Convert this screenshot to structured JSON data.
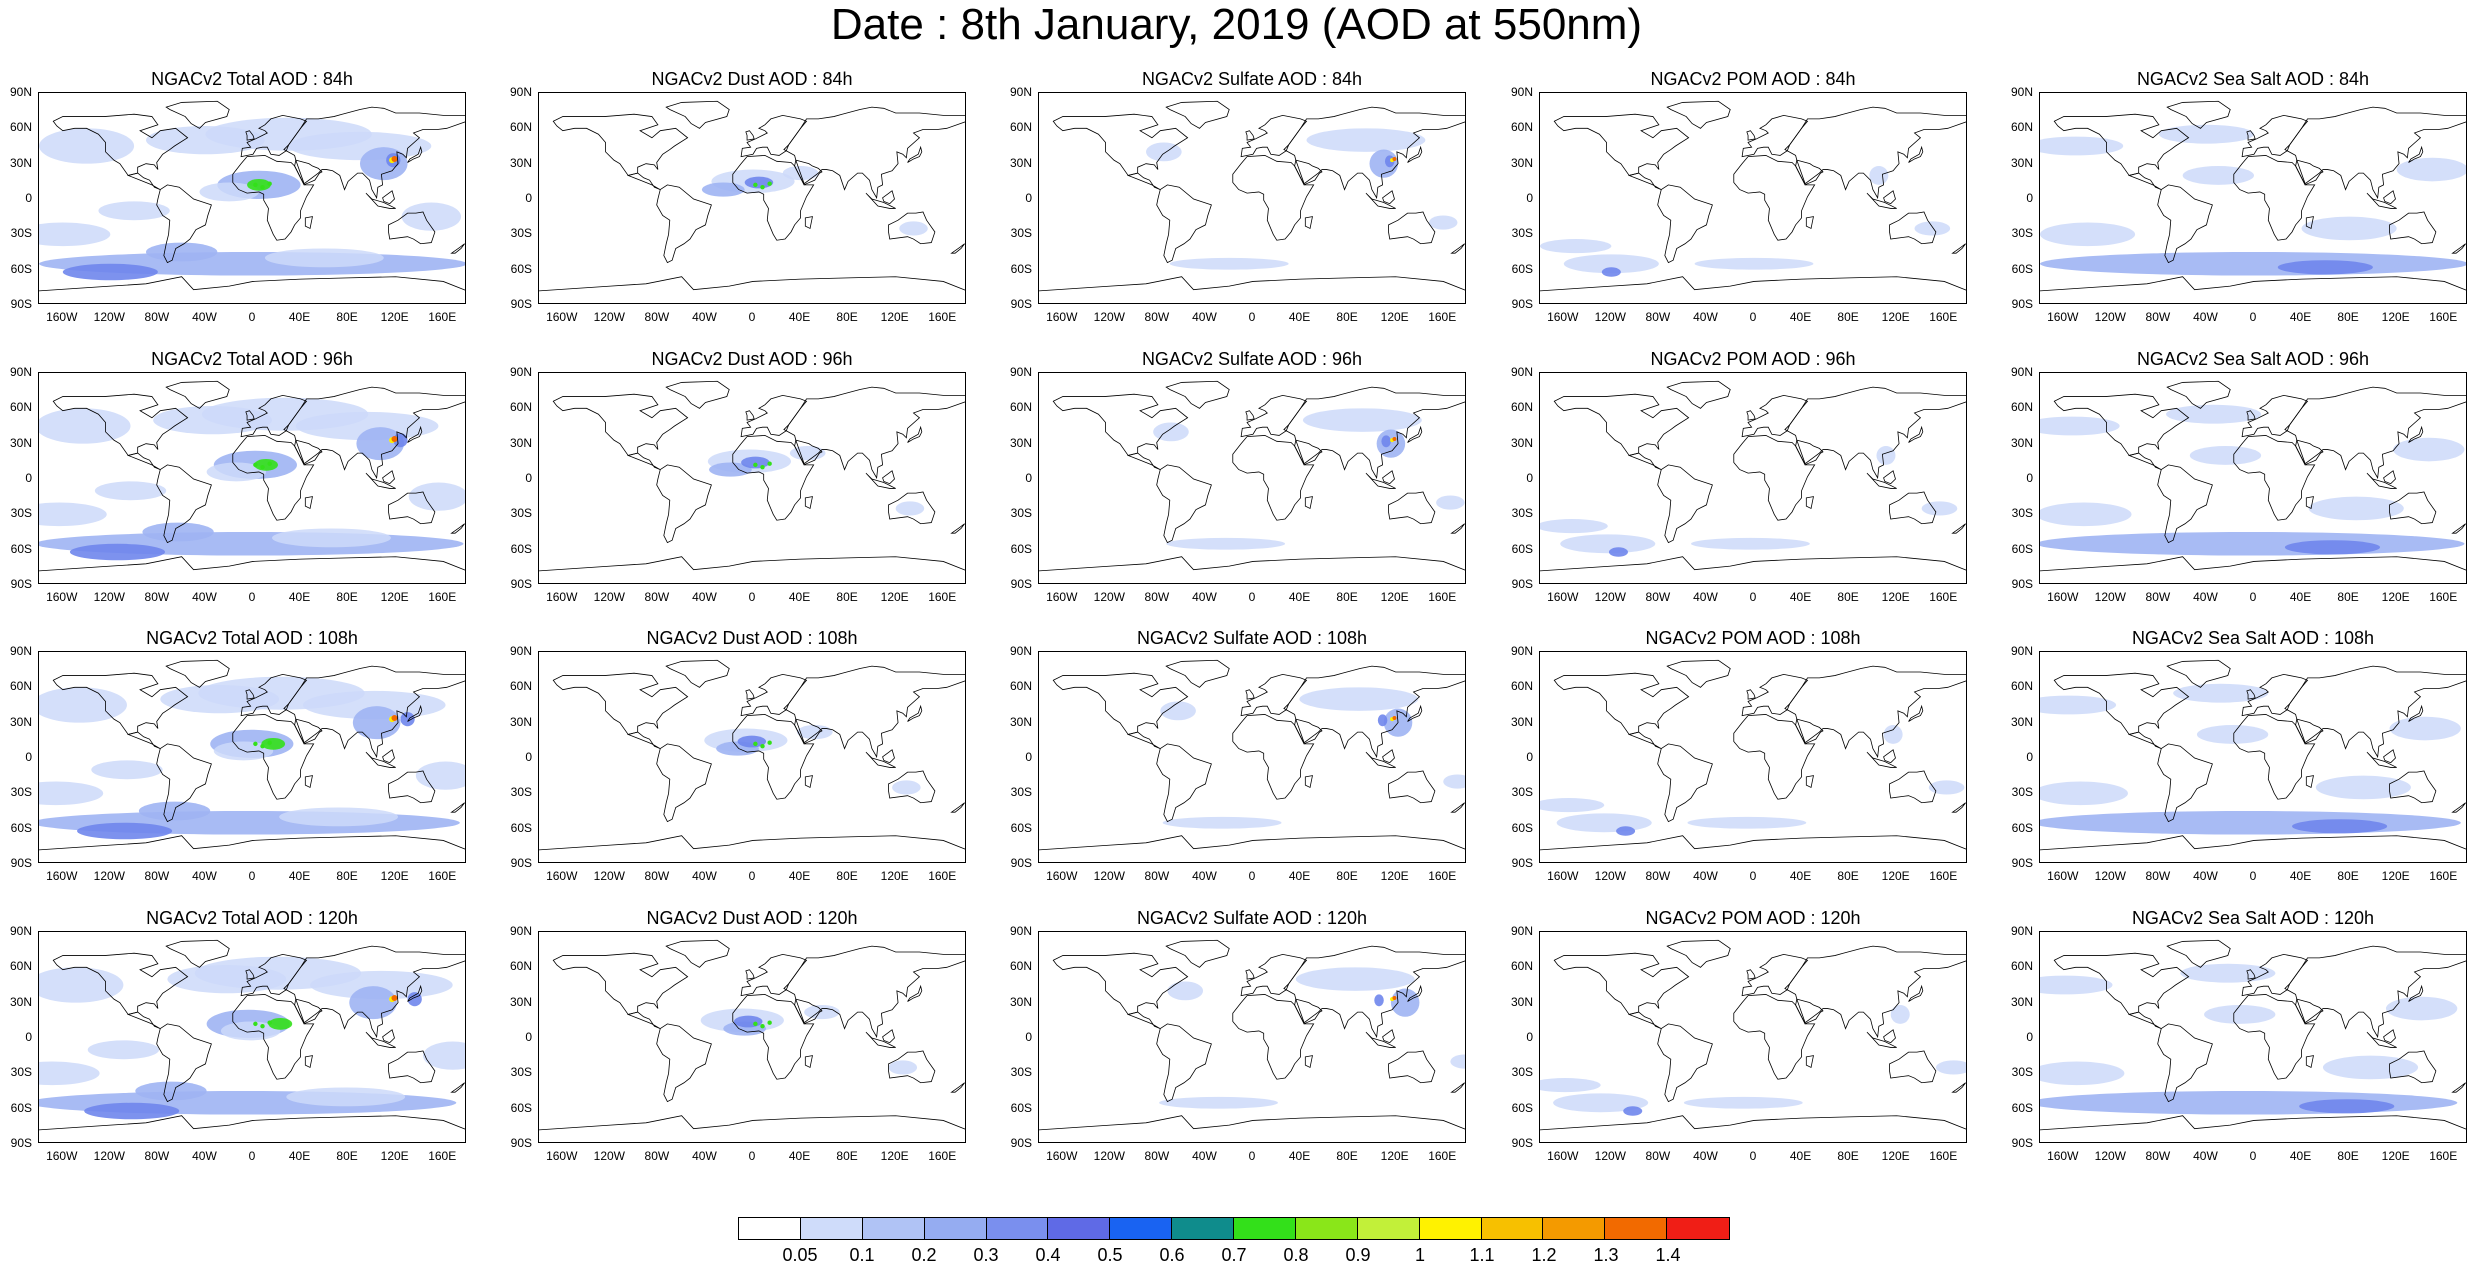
{
  "title": "Date : 8th January, 2019 (AOD at 550nm)",
  "rows": [
    {
      "hour": "84h",
      "titles": [
        "NGACv2 Total AOD : 84h",
        "NGACv2 Dust AOD : 84h",
        "NGACv2 Sulfate AOD : 84h",
        "NGACv2 POM AOD : 84h",
        "NGACv2 Sea Salt AOD : 84h"
      ]
    },
    {
      "hour": "96h",
      "titles": [
        "NGACv2 Total AOD : 96h",
        "NGACv2 Dust AOD : 96h",
        "NGACv2 Sulfate AOD : 96h",
        "NGACv2 POM AOD : 96h",
        "NGACv2 Sea Salt AOD : 96h"
      ]
    },
    {
      "hour": "108h",
      "titles": [
        "NGACv2 Total AOD : 108h",
        "NGACv2 Dust AOD : 108h",
        "NGACv2 Sulfate AOD : 108h",
        "NGACv2 POM AOD : 108h",
        "NGACv2 Sea Salt AOD : 108h"
      ]
    },
    {
      "hour": "120h",
      "titles": [
        "NGACv2 Total AOD : 120h",
        "NGACv2 Dust AOD : 120h",
        "NGACv2 Sulfate AOD : 120h",
        "NGACv2 POM AOD : 120h",
        "NGACv2 Sea Salt  AOD : 120h"
      ]
    }
  ],
  "lat_labels": [
    "90N",
    "60N",
    "30N",
    "0",
    "30S",
    "60S",
    "90S"
  ],
  "lon_labels": [
    "160W",
    "120W",
    "80W",
    "40W",
    "0",
    "40E",
    "80E",
    "120E",
    "160E"
  ],
  "colorbar": {
    "labels": [
      "0.05",
      "0.1",
      "0.2",
      "0.3",
      "0.4",
      "0.5",
      "0.6",
      "0.7",
      "0.8",
      "0.9",
      "1",
      "1.1",
      "1.2",
      "1.3",
      "1.4"
    ],
    "colors": [
      "#ffffff",
      "#cfdcfa",
      "#b0c3f5",
      "#95acf1",
      "#7a8fee",
      "#5f6ae6",
      "#1963f2",
      "#0f8c8c",
      "#33e01a",
      "#8ae619",
      "#c2f039",
      "#fff200",
      "#f7c000",
      "#f49a00",
      "#f26a00",
      "#f01e16"
    ]
  },
  "aerosol_colors": {
    "light": "#cdd9f9",
    "medium": "#9eb4f3",
    "strong": "#6f86ec",
    "peak": "#1c63f2",
    "hot": "#33e01a",
    "hotter": "#fff200",
    "hottest": "#f26a00"
  }
}
